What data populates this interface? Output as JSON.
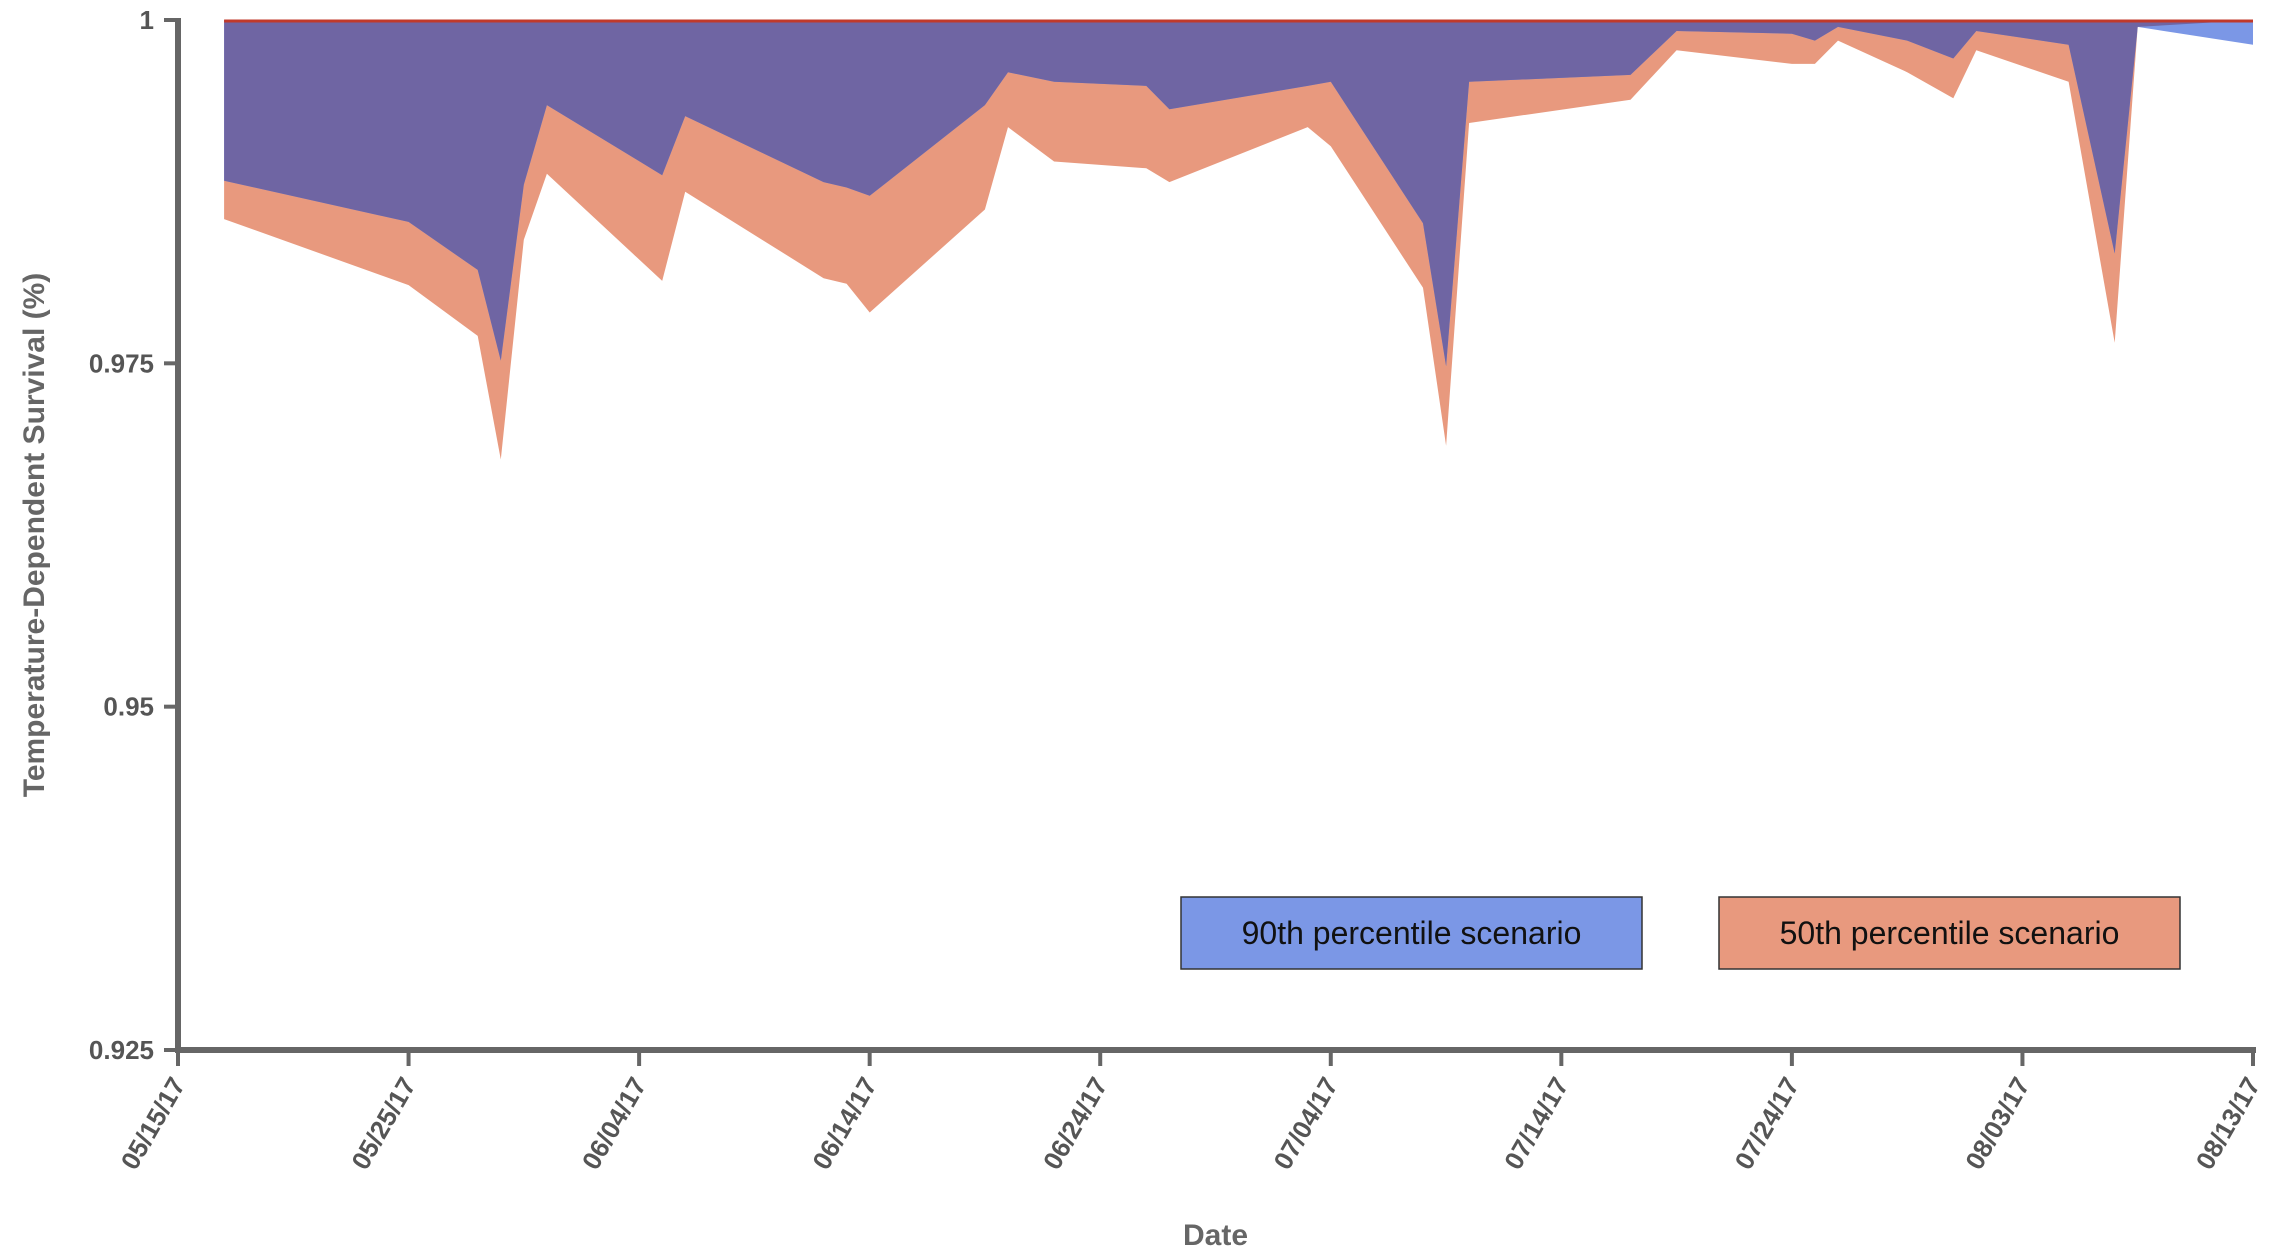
{
  "chart_data": {
    "type": "area",
    "title": "",
    "xlabel": "Date",
    "ylabel": "Temperature-Dependent Survival (%)",
    "ylim": [
      0.925,
      1.0
    ],
    "xlim": [
      "05/15/17",
      "08/13/17"
    ],
    "yticks": [
      0.925,
      0.95,
      0.975,
      1.0
    ],
    "ytick_labels": [
      "0.925",
      "0.95",
      "0.975",
      "1"
    ],
    "xticks": [
      "05/15/17",
      "05/25/17",
      "06/04/17",
      "06/14/17",
      "06/24/17",
      "07/04/17",
      "07/14/17",
      "07/24/17",
      "08/03/17",
      "08/13/17"
    ],
    "grid": false,
    "legend_position": "bottom-right",
    "fill_between": 1.0,
    "series": [
      {
        "name": "50th percentile scenario",
        "color": "#e8997e",
        "x": [
          "05/17/17",
          "05/25/17",
          "05/28/17",
          "05/29/17",
          "05/30/17",
          "05/31/17",
          "06/05/17",
          "06/06/17",
          "06/12/17",
          "06/13/17",
          "06/14/17",
          "06/19/17",
          "06/20/17",
          "06/22/17",
          "06/26/17",
          "06/27/17",
          "07/03/17",
          "07/04/17",
          "07/08/17",
          "07/09/17",
          "07/10/17",
          "07/17/17",
          "07/19/17",
          "07/24/17",
          "07/25/17",
          "07/26/17",
          "07/29/17",
          "07/31/17",
          "08/01/17",
          "08/05/17",
          "08/07/17",
          "08/08/17",
          "08/13/17"
        ],
        "values": [
          0.9855,
          0.9807,
          0.977,
          0.968,
          0.984,
          0.9888,
          0.981,
          0.9875,
          0.9812,
          0.9808,
          0.9787,
          0.9862,
          0.9922,
          0.9897,
          0.9892,
          0.9882,
          0.9922,
          0.9908,
          0.9805,
          0.969,
          0.9925,
          0.9942,
          0.9978,
          0.9968,
          0.9968,
          0.9985,
          0.9962,
          0.9943,
          0.9978,
          0.9955,
          0.9765,
          0.9995,
          1.0
        ]
      },
      {
        "name": "90th percentile scenario",
        "color": "#7b97e6",
        "x": [
          "05/17/17",
          "05/25/17",
          "05/28/17",
          "05/29/17",
          "05/30/17",
          "05/31/17",
          "06/05/17",
          "06/06/17",
          "06/12/17",
          "06/13/17",
          "06/14/17",
          "06/19/17",
          "06/20/17",
          "06/22/17",
          "06/26/17",
          "06/27/17",
          "07/03/17",
          "07/04/17",
          "07/08/17",
          "07/09/17",
          "07/10/17",
          "07/17/17",
          "07/19/17",
          "07/24/17",
          "07/25/17",
          "07/26/17",
          "07/29/17",
          "07/31/17",
          "08/01/17",
          "08/05/17",
          "08/07/17",
          "08/08/17",
          "08/13/17"
        ],
        "values": [
          0.9883,
          0.9853,
          0.9818,
          0.9752,
          0.988,
          0.9938,
          0.9887,
          0.993,
          0.9882,
          0.9878,
          0.9872,
          0.9938,
          0.9962,
          0.9955,
          0.9952,
          0.9935,
          0.9952,
          0.9955,
          0.9852,
          0.9748,
          0.9955,
          0.996,
          0.9992,
          0.999,
          0.9985,
          0.9995,
          0.9985,
          0.9972,
          0.9992,
          0.9982,
          0.983,
          0.9995,
          0.9982
        ]
      }
    ],
    "overlap_color": "#6f65a3",
    "baseline_color": "#c0392b",
    "legend": [
      {
        "label": "90th percentile scenario",
        "color": "#7b97e6"
      },
      {
        "label": "50th percentile scenario",
        "color": "#e8997e"
      }
    ]
  }
}
